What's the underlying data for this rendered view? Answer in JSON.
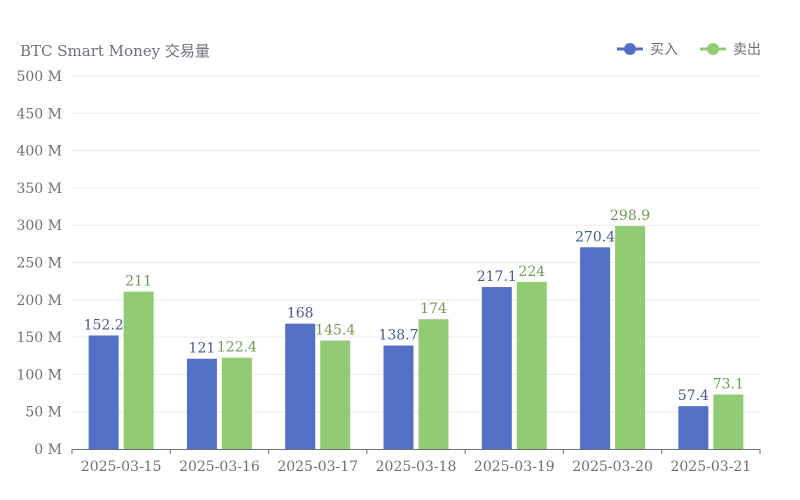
{
  "chart_data": {
    "type": "bar",
    "title": "BTC Smart Money 交易量",
    "xlabel": "",
    "ylabel": "",
    "categories": [
      "2025-03-15",
      "2025-03-16",
      "2025-03-17",
      "2025-03-18",
      "2025-03-19",
      "2025-03-20",
      "2025-03-21"
    ],
    "series": [
      {
        "name": "买入",
        "color": "#5470c6",
        "values": [
          152.2,
          121,
          168,
          138.7,
          217.1,
          270.4,
          57.4
        ]
      },
      {
        "name": "卖出",
        "color": "#91cc75",
        "values": [
          211,
          122.4,
          145.4,
          174,
          224,
          298.9,
          73.1
        ]
      }
    ],
    "ylim": [
      0,
      500
    ],
    "yticks": [
      {
        "value": 0,
        "label": "0 M"
      },
      {
        "value": 50,
        "label": "50 M"
      },
      {
        "value": 100,
        "label": "100 M"
      },
      {
        "value": 150,
        "label": "150 M"
      },
      {
        "value": 200,
        "label": "200 M"
      },
      {
        "value": 250,
        "label": "250 M"
      },
      {
        "value": 300,
        "label": "300 M"
      },
      {
        "value": 350,
        "label": "350 M"
      },
      {
        "value": 400,
        "label": "400 M"
      },
      {
        "value": 450,
        "label": "450 M"
      },
      {
        "value": 500,
        "label": "500 M"
      }
    ],
    "grid": true,
    "legend_position": "top-right"
  }
}
